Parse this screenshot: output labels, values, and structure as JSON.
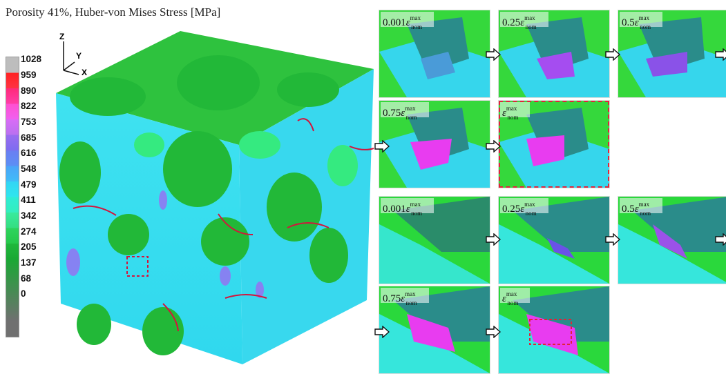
{
  "title": "Porosity 41%, Huber-von Mises Stress [MPa]",
  "legend": {
    "labels": [
      "1028",
      "959",
      "890",
      "822",
      "753",
      "685",
      "616",
      "548",
      "479",
      "411",
      "342",
      "274",
      "205",
      "137",
      "68",
      "0"
    ]
  },
  "axes": {
    "z": "Z",
    "y": "Y",
    "x": "X"
  },
  "strain_symbol": "ε",
  "strain_sup": "max",
  "strain_sub": "nom",
  "group_top": {
    "panels": [
      {
        "coef": "0.001"
      },
      {
        "coef": "0.25"
      },
      {
        "coef": "0.5"
      },
      {
        "coef": "0.75"
      },
      {
        "coef": ""
      }
    ]
  },
  "group_bottom": {
    "panels": [
      {
        "coef": "0.001"
      },
      {
        "coef": "0.25"
      },
      {
        "coef": "0.5"
      },
      {
        "coef": "0.75"
      },
      {
        "coef": ""
      }
    ]
  },
  "colors": {
    "green": "#22c23a",
    "cyan": "#33e6f0",
    "magenta": "#e83cf0",
    "red_crack": "#d4143c",
    "highlight": "#e0243a"
  }
}
